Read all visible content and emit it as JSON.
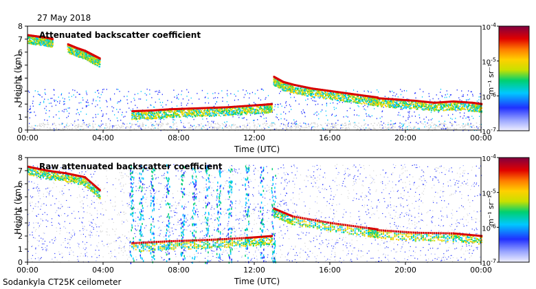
{
  "date": "27 May 2018",
  "footer": "Sodankyla CT25K ceilometer",
  "colorbar_unit": "m⁻¹ sr⁻¹",
  "colors": {
    "colormap": [
      "#f0f0ff",
      "#9aa6ff",
      "#2030ff",
      "#00c8ff",
      "#00d070",
      "#c8e000",
      "#ffd000",
      "#ff7a00",
      "#e00000",
      "#800040"
    ],
    "noise": "#d4d4d4",
    "layer_core": "#d80000"
  },
  "chart_data": [
    {
      "type": "heatmap",
      "title": "Attenuated backscatter coefficient",
      "xlabel": "Time (UTC)",
      "ylabel": "Height (km)",
      "xlim": [
        0,
        24
      ],
      "ylim": [
        0,
        8
      ],
      "xticks": [
        "00:00",
        "04:00",
        "08:00",
        "12:00",
        "16:00",
        "20:00",
        "00:00"
      ],
      "yticks": [
        "0",
        "1",
        "2",
        "3",
        "4",
        "5",
        "6",
        "7",
        "8"
      ],
      "colorbar": {
        "scale": "log",
        "range": [
          1e-07,
          0.0001
        ],
        "tick_labels": [
          "10-7",
          "10-6",
          "10-5",
          "10-4"
        ]
      },
      "layers": [
        {
          "name": "upper cloud",
          "x": [
            0.0,
            0.5,
            1.0,
            1.3
          ],
          "y": [
            7.3,
            7.2,
            7.1,
            7.0
          ]
        },
        {
          "name": "upper cloud 2",
          "x": [
            2.1,
            2.6,
            3.0,
            3.4,
            3.8
          ],
          "y": [
            6.6,
            6.3,
            6.1,
            5.8,
            5.5
          ]
        },
        {
          "name": "boundary layer",
          "x": [
            5.5,
            6.5,
            7.5,
            8.5,
            9.5,
            10.5,
            11.5,
            12.5,
            12.9
          ],
          "y": [
            1.45,
            1.5,
            1.6,
            1.65,
            1.7,
            1.75,
            1.85,
            1.95,
            2.0
          ]
        },
        {
          "name": "descending cloud",
          "x": [
            13.0,
            13.5,
            14.0,
            15.0,
            16.0,
            17.0,
            18.0,
            18.5
          ],
          "y": [
            4.1,
            3.7,
            3.5,
            3.2,
            3.0,
            2.8,
            2.6,
            2.5
          ]
        },
        {
          "name": "lowering cloud base",
          "x": [
            18.5,
            19.5,
            20.5,
            21.5,
            22.5,
            23.5,
            24.0
          ],
          "y": [
            2.45,
            2.35,
            2.25,
            2.1,
            2.2,
            2.1,
            2.0
          ]
        }
      ]
    },
    {
      "type": "heatmap",
      "title": "Raw attenuated backscatter coefficient",
      "xlabel": "Time (UTC)",
      "ylabel": "Height (km)",
      "xlim": [
        0,
        24
      ],
      "ylim": [
        0,
        8
      ],
      "xticks": [
        "00:00",
        "04:00",
        "08:00",
        "12:00",
        "16:00",
        "20:00",
        "00:00"
      ],
      "yticks": [
        "0",
        "1",
        "2",
        "3",
        "4",
        "5",
        "6",
        "7",
        "8"
      ],
      "colorbar": {
        "scale": "log",
        "range": [
          1e-07,
          0.0001
        ],
        "tick_labels": [
          "10-7",
          "10-6",
          "10-5",
          "10-4"
        ]
      },
      "layers": [
        {
          "name": "upper cloud",
          "x": [
            0.0,
            1.0,
            2.0,
            3.0,
            3.8
          ],
          "y": [
            7.3,
            7.0,
            6.8,
            6.5,
            5.5
          ]
        },
        {
          "name": "boundary layer",
          "x": [
            5.5,
            7.5,
            9.5,
            11.5,
            12.9
          ],
          "y": [
            1.45,
            1.6,
            1.7,
            1.85,
            2.0
          ]
        },
        {
          "name": "descending cloud",
          "x": [
            13.0,
            14.0,
            16.0,
            18.0,
            18.5
          ],
          "y": [
            4.1,
            3.5,
            3.0,
            2.6,
            2.5
          ]
        },
        {
          "name": "lowering cloud base",
          "x": [
            18.5,
            20.5,
            22.5,
            24.0
          ],
          "y": [
            2.45,
            2.25,
            2.2,
            2.0
          ]
        }
      ],
      "vertical_streaks_hours": [
        5.5,
        6.0,
        6.6,
        7.4,
        8.2,
        8.8,
        9.5,
        10.1,
        10.7,
        11.6,
        12.4,
        13.0
      ]
    }
  ]
}
